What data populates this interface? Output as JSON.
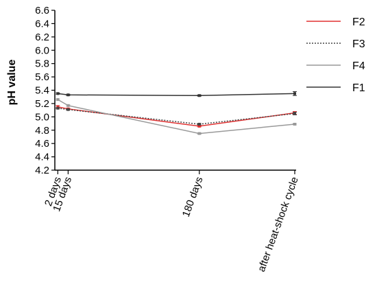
{
  "chart_data": {
    "type": "line",
    "xlabel": "",
    "ylabel": "pH value",
    "ylim": [
      4.2,
      6.6
    ],
    "yticks": [
      "4.2",
      "4.4",
      "4.6",
      "4.8",
      "5.0",
      "5.2",
      "5.4",
      "5.6",
      "5.8",
      "6.0",
      "6.2",
      "6.4",
      "6.6"
    ],
    "x_positions_days": [
      2,
      15,
      180,
      300
    ],
    "categories": [
      "2 days",
      "15 days",
      "180 days",
      "after heat-shock cycle"
    ],
    "legend_position": "right",
    "grid": false,
    "series": [
      {
        "name": "F2",
        "color": "#e03030",
        "dash": "",
        "values": [
          5.15,
          5.12,
          4.86,
          5.06
        ],
        "errors": [
          0.02,
          0.01,
          0.01,
          0.02
        ]
      },
      {
        "name": "F3",
        "color": "#444444",
        "dash": "2,2",
        "values": [
          5.13,
          5.11,
          4.89,
          5.05
        ],
        "errors": [
          0.01,
          0.01,
          0.01,
          0.02
        ]
      },
      {
        "name": "F4",
        "color": "#999999",
        "dash": "",
        "values": [
          5.26,
          5.17,
          4.75,
          4.89
        ],
        "errors": [
          0.01,
          0.01,
          0.01,
          0.01
        ]
      },
      {
        "name": "F1",
        "color": "#333333",
        "dash": "",
        "values": [
          5.35,
          5.33,
          5.32,
          5.35
        ],
        "errors": [
          0.01,
          0.01,
          0.01,
          0.03
        ]
      }
    ]
  }
}
